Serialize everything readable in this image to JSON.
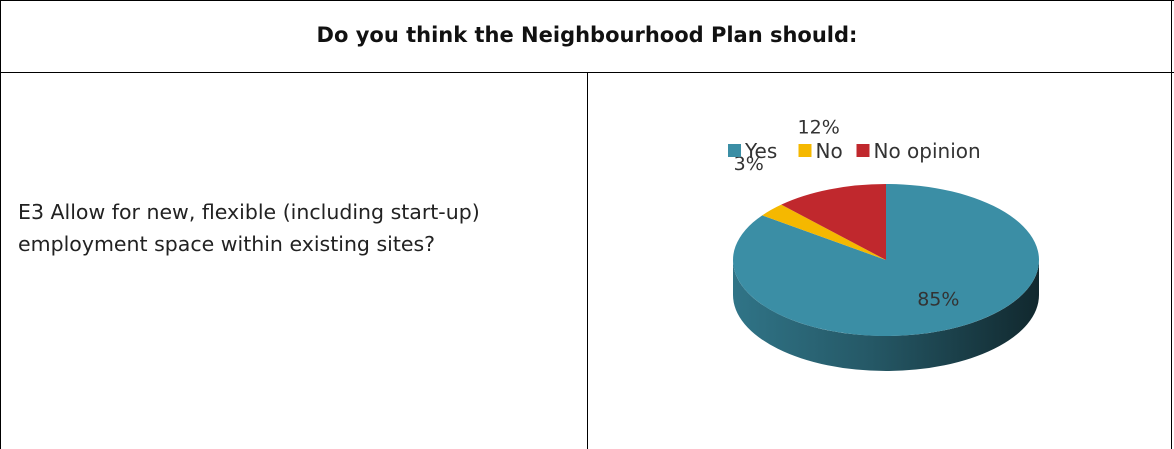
{
  "table": {
    "header": "Do you think the Neighbourhood Plan should:",
    "question": "E3 Allow for new, flexible (including start-up) employment space within existing sites?"
  },
  "chart_data": {
    "type": "pie",
    "categories": [
      "Yes",
      "No",
      "No opinion"
    ],
    "values": [
      85,
      3,
      12
    ],
    "data_labels": [
      "85%",
      "3%",
      "12%"
    ],
    "colors": [
      "#3b8ea5",
      "#f5b800",
      "#c0282d"
    ],
    "legend_position": "top",
    "style": "3d"
  }
}
